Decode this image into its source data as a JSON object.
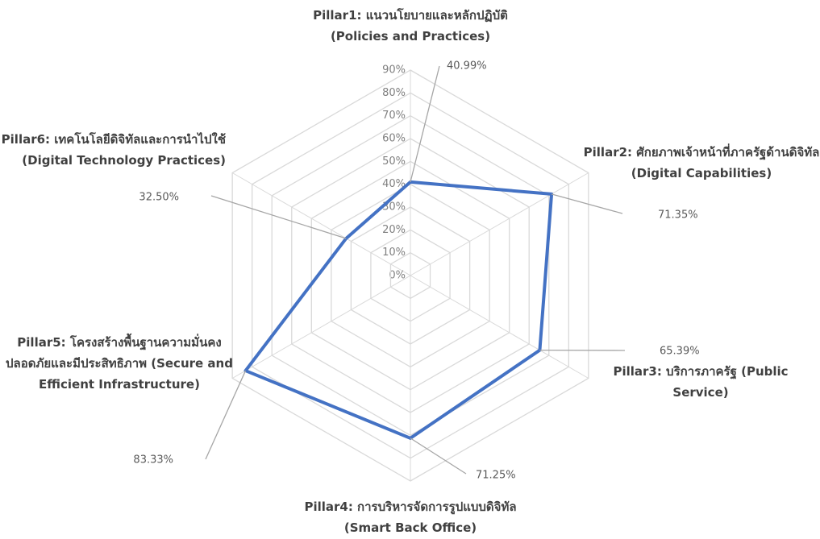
{
  "chart_data": {
    "type": "radar",
    "categories": [
      "Pillar1: แนวนโยบายและหลักปฏิบัติ (Policies and Practices)",
      "Pillar2: ศักยภาพเจ้าหน้าที่ภาครัฐด้านดิจิทัล (Digital Capabilities)",
      "Pillar3: บริการภาครัฐ (Public Service)",
      "Pillar4: การบริหารจัดการรูปแบบดิจิทัล (Smart Back Office)",
      "Pillar5: โครงสร้างพื้นฐานความมั่นคงปลอดภัยและมีประสิทธิภาพ (Secure and Efficient Infrastructure)",
      "Pillar6: เทคโนโลยีดิจิทัลและการนำไปใช้ (Digital Technology Practices)"
    ],
    "values": [
      40.99,
      71.35,
      65.39,
      71.25,
      83.33,
      32.5
    ],
    "value_labels": [
      "40.99%",
      "71.35%",
      "65.39%",
      "71.25%",
      "83.33%",
      "32.50%"
    ],
    "color": "#4472c4",
    "ylim": [
      0,
      90
    ],
    "yticks": [
      {
        "value": 0,
        "label": "0%"
      },
      {
        "value": 10,
        "label": "10%"
      },
      {
        "value": 20,
        "label": "20%"
      },
      {
        "value": 30,
        "label": "30%"
      },
      {
        "value": 40,
        "label": "40%"
      },
      {
        "value": 50,
        "label": "50%"
      },
      {
        "value": 60,
        "label": "60%"
      },
      {
        "value": 70,
        "label": "70%"
      },
      {
        "value": 80,
        "label": "80%"
      },
      {
        "value": 90,
        "label": "90%"
      }
    ],
    "grid": true
  }
}
